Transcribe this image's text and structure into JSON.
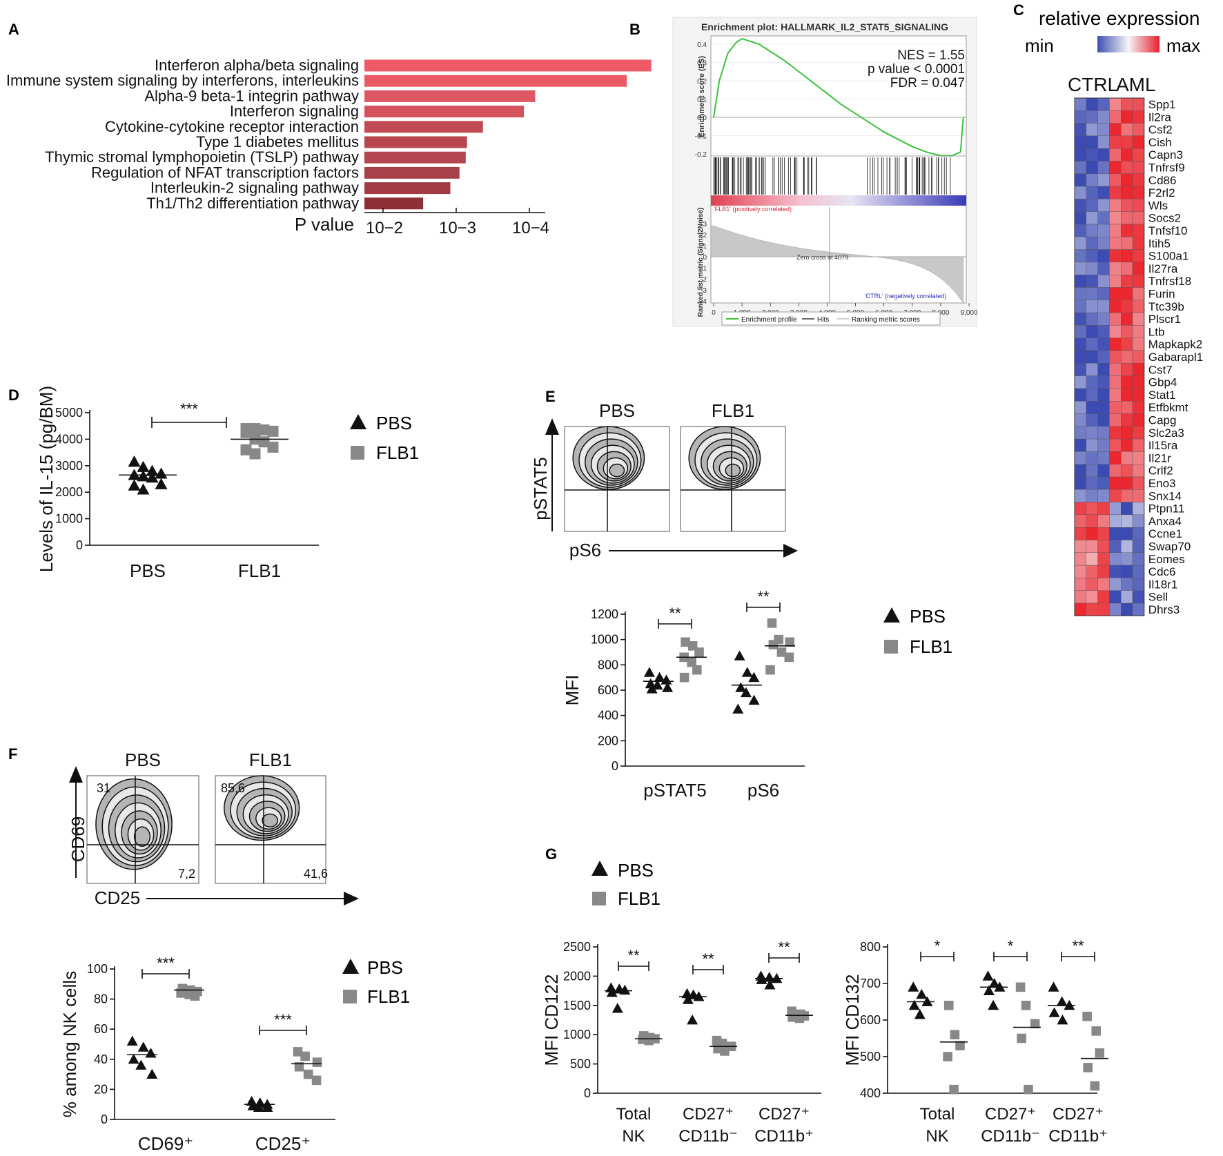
{
  "panel_letters": [
    "A",
    "B",
    "C",
    "D",
    "E",
    "F",
    "G"
  ],
  "chart_data": [
    {
      "id": "A",
      "type": "bar",
      "orientation": "horizontal",
      "xlabel": "P value",
      "x_scale": "log",
      "x_ticks": [
        "10−2",
        "10−3",
        "10−4"
      ],
      "categories": [
        "Interferon alpha/beta signaling",
        "Immune system signaling by interferons, interleukins",
        "Alpha-9 beta-1 integrin pathway",
        "Interferon signaling",
        "Cytokine-cytokine receptor interaction",
        "Type 1 diabetes mellitus",
        "Thymic stromal lymphopoietin (TSLP) pathway",
        "Regulation of NFAT transcription factors",
        "Interleukin-2 signaling pathway",
        "Th1/Th2 differentiation pathway"
      ],
      "values": [
        3e-05,
        6e-05,
        0.0008,
        0.0011,
        0.0035,
        0.0055,
        0.0057,
        0.0068,
        0.0088,
        0.019
      ],
      "colors": [
        "#ee5a66",
        "#ea5a65",
        "#dd5862",
        "#d4525c",
        "#c24a54",
        "#b8464f",
        "#b3454e",
        "#a84049",
        "#a13c45",
        "#8e2f36"
      ]
    },
    {
      "id": "B",
      "type": "line",
      "title": "Enrichment plot: HALLMARK_IL2_STAT5_SIGNALING",
      "ylabel": "Enrichment score (ES)",
      "ylabel2": "Ranked list metric (Signal2Noise)",
      "xlabel": "Rank in Ordered Dataset",
      "y_ticks": [
        "0.4",
        "0.3",
        "0.2",
        "0.1",
        "0.0",
        "-0.1",
        "-0.2"
      ],
      "y2_ticks": [
        "3",
        "2",
        "1",
        "0",
        "-1",
        "-2",
        "-3",
        "-4"
      ],
      "x_ticks": [
        "0",
        "1,000",
        "2,000",
        "3,000",
        "4,000",
        "5,000",
        "6,000",
        "7,000",
        "8,000",
        "9,000"
      ],
      "stats": [
        "NES = 1.55",
        "p value < 0.0001",
        "FDR = 0.047"
      ],
      "pos_label": "'FLB1' (positively correlated)",
      "neg_label": "'CTRL' (negatively correlated)",
      "zero_cross": "Zero cross at 4079",
      "legend": [
        "Enrichment profile",
        "Hits",
        "Ranking metric scores"
      ],
      "es_x": [
        0,
        200,
        500,
        800,
        1000,
        1200,
        1600,
        2000,
        2500,
        3000,
        3500,
        4000,
        4500,
        5000,
        5500,
        6000,
        6500,
        7000,
        7500,
        8000,
        8400,
        8700,
        8800
      ],
      "es_y": [
        0.0,
        0.2,
        0.35,
        0.41,
        0.43,
        0.42,
        0.4,
        0.36,
        0.31,
        0.25,
        0.19,
        0.13,
        0.07,
        0.02,
        -0.03,
        -0.08,
        -0.12,
        -0.16,
        -0.19,
        -0.21,
        -0.21,
        -0.19,
        0.0
      ]
    },
    {
      "id": "C",
      "type": "heatmap",
      "title": "relative expression",
      "min_label": "min",
      "max_label": "max",
      "groups": [
        "CTRL",
        "AML"
      ],
      "genes": [
        "Spp1",
        "Il2ra",
        "Csf2",
        "Cish",
        "Capn3",
        "Tnfrsf9",
        "Cd86",
        "F2rl2",
        "Wls",
        "Socs2",
        "Tnfsf10",
        "Itih5",
        "S100a1",
        "Il27ra",
        "Tnfrsf18",
        "Furin",
        "Ttc39b",
        "Plscr1",
        "Ltb",
        "Mapkapk2",
        "Gabarapl1",
        "Cst7",
        "Gbp4",
        "Stat1",
        "Etfbkmt",
        "Capg",
        "Slc2a3",
        "Il15ra",
        "Il21r",
        "Crlf2",
        "Eno3",
        "Snx14",
        "Ptpn11",
        "Anxa4",
        "Ccne1",
        "Swap70",
        "Eomes",
        "Cdc6",
        "Il18r1",
        "Sell",
        "Dhrs3"
      ]
    },
    {
      "id": "D",
      "type": "scatter",
      "ylabel": "Levels of IL-15 (pg/BM)",
      "categories": [
        "PBS",
        "FLB1"
      ],
      "y_ticks": [
        "0",
        "1000",
        "2000",
        "3000",
        "4000",
        "5000"
      ],
      "ylim": [
        0,
        5000
      ],
      "series": [
        {
          "name": "PBS",
          "marker": "triangle",
          "color": "#111111",
          "values": [
            3150,
            2950,
            2800,
            2700,
            2650,
            2600,
            2550,
            2300,
            2250,
            2100
          ],
          "mean": 2650
        },
        {
          "name": "FLB1",
          "marker": "square",
          "color": "#888888",
          "values": [
            4400,
            4400,
            4350,
            4300,
            4250,
            4000,
            3900,
            3700,
            3600,
            3450
          ],
          "mean": 4000
        }
      ],
      "significance": [
        "***"
      ]
    },
    {
      "id": "E",
      "type": "scatter",
      "ylabel": "MFI",
      "flow_titles": [
        "PBS",
        "FLB1"
      ],
      "flow_y": "pSTAT5",
      "flow_x": "pS6",
      "categories": [
        "pSTAT5",
        "pS6"
      ],
      "y_ticks": [
        "0",
        "200",
        "400",
        "600",
        "800",
        "1000",
        "1200"
      ],
      "ylim": [
        0,
        1200
      ],
      "series": [
        {
          "name": "PBS",
          "marker": "triangle",
          "color": "#111111",
          "values": [
            [
              740,
              700,
              680,
              650,
              640,
              620,
              610
            ],
            [
              870,
              740,
              700,
              620,
              580,
              520,
              450
            ]
          ],
          "means": [
            670,
            640
          ]
        },
        {
          "name": "FLB1",
          "marker": "square",
          "color": "#888888",
          "values": [
            [
              980,
              950,
              900,
              860,
              820,
              760,
              700
            ],
            [
              1130,
              1000,
              980,
              960,
              900,
              860,
              760
            ]
          ],
          "means": [
            860,
            950
          ]
        }
      ],
      "significance": [
        "**",
        "**"
      ]
    },
    {
      "id": "F",
      "type": "scatter",
      "ylabel": "% among NK cells",
      "flow_titles": [
        "PBS",
        "FLB1"
      ],
      "flow_y": "CD69",
      "flow_x": "CD25",
      "gates": [
        [
          "31",
          "7,2"
        ],
        [
          "85,6",
          "41,6"
        ]
      ],
      "categories": [
        "CD69⁺",
        "CD25⁺"
      ],
      "y_ticks": [
        "0",
        "20",
        "40",
        "60",
        "80",
        "100"
      ],
      "ylim": [
        0,
        100
      ],
      "series": [
        {
          "name": "PBS",
          "marker": "triangle",
          "color": "#111111",
          "values": [
            [
              52,
              48,
              44,
              40,
              36,
              30
            ],
            [
              12,
              11,
              10,
              9,
              8,
              8
            ]
          ],
          "means": [
            43,
            10
          ]
        },
        {
          "name": "FLB1",
          "marker": "square",
          "color": "#888888",
          "values": [
            [
              87,
              86,
              85,
              84,
              83,
              82
            ],
            [
              45,
              42,
              38,
              35,
              30,
              26
            ]
          ],
          "means": [
            86,
            37
          ]
        }
      ],
      "significance": [
        "***",
        "***"
      ]
    },
    {
      "id": "G1",
      "type": "scatter",
      "ylabel": "MFI CD122",
      "categories": [
        [
          "Total",
          "NK"
        ],
        [
          "CD27⁺",
          "CD11b⁻"
        ],
        [
          "CD27⁺",
          "CD11b⁺"
        ]
      ],
      "y_ticks": [
        "0",
        "500",
        "1000",
        "1500",
        "2000",
        "2500"
      ],
      "ylim": [
        0,
        2500
      ],
      "series": [
        {
          "name": "PBS",
          "marker": "triangle",
          "color": "#111111",
          "values": [
            [
              1800,
              1780,
              1760,
              1720,
              1450
            ],
            [
              1700,
              1680,
              1650,
              1600,
              1250
            ],
            [
              2000,
              1980,
              1960,
              1940,
              1850
            ]
          ],
          "means": [
            1750,
            1650,
            1960
          ]
        },
        {
          "name": "FLB1",
          "marker": "square",
          "color": "#888888",
          "values": [
            [
              980,
              950,
              930,
              920,
              900
            ],
            [
              900,
              850,
              800,
              760,
              720
            ],
            [
              1400,
              1350,
              1320,
              1300,
              1280
            ]
          ],
          "means": [
            930,
            800,
            1330
          ]
        }
      ],
      "significance": [
        "**",
        "**",
        "**"
      ]
    },
    {
      "id": "G2",
      "type": "scatter",
      "ylabel": "MFI CD132",
      "categories": [
        [
          "Total",
          "NK"
        ],
        [
          "CD27⁺",
          "CD11b⁻"
        ],
        [
          "CD27⁺",
          "CD11b⁺"
        ]
      ],
      "y_ticks": [
        "400",
        "500",
        "600",
        "700",
        "800"
      ],
      "ylim": [
        400,
        800
      ],
      "series": [
        {
          "name": "PBS",
          "marker": "triangle",
          "color": "#111111",
          "values": [
            [
              690,
              670,
              650,
              640,
              615
            ],
            [
              720,
              700,
              690,
              680,
              640
            ],
            [
              690,
              650,
              640,
              620,
              600
            ]
          ],
          "means": [
            650,
            690,
            640
          ]
        },
        {
          "name": "FLB1",
          "marker": "square",
          "color": "#888888",
          "values": [
            [
              640,
              560,
              530,
              500,
              410
            ],
            [
              690,
              640,
              590,
              550,
              410
            ],
            [
              610,
              570,
              510,
              470,
              420
            ]
          ],
          "means": [
            540,
            580,
            495
          ]
        }
      ],
      "significance": [
        "*",
        "*",
        "**"
      ]
    }
  ],
  "legend": {
    "pbs": "PBS",
    "flb1": "FLB1"
  }
}
